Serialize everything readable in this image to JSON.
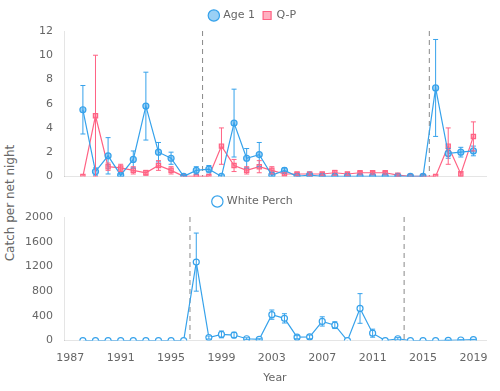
{
  "chart_data": [
    {
      "type": "line",
      "ylabel": "Catch per net night",
      "x": [
        1988,
        1989,
        1990,
        1991,
        1992,
        1993,
        1994,
        1995,
        1996,
        1997,
        1998,
        1999,
        2000,
        2001,
        2002,
        2003,
        2004,
        2005,
        2006,
        2007,
        2008,
        2009,
        2010,
        2011,
        2012,
        2013,
        2014,
        2015,
        2016,
        2017,
        2018,
        2019
      ],
      "series": [
        {
          "name": "Age 1",
          "marker": "circle",
          "values": [
            5.5,
            0.4,
            1.7,
            0.1,
            1.4,
            5.8,
            2.0,
            1.5,
            0.0,
            0.5,
            0.6,
            0.0,
            4.4,
            1.5,
            1.8,
            0.1,
            0.5,
            0.0,
            0.1,
            0.0,
            0.0,
            0.0,
            0.0,
            0.0,
            0.0,
            0.0,
            0.0,
            0.0,
            7.3,
            1.9,
            2.0,
            2.1
          ],
          "errors": [
            2.0,
            0.3,
            1.5,
            0.1,
            0.7,
            2.8,
            0.8,
            0.5,
            0.0,
            0.3,
            0.3,
            0.0,
            2.8,
            0.8,
            1.0,
            0.1,
            0.2,
            0.0,
            0.1,
            0.0,
            0.0,
            0.0,
            0.0,
            0.0,
            0.0,
            0.0,
            0.0,
            0.0,
            4.0,
            0.4,
            0.4,
            0.4
          ]
        },
        {
          "name": "Q-P",
          "marker": "square",
          "values": [
            0.0,
            5.0,
            0.8,
            0.7,
            0.5,
            0.3,
            0.9,
            0.5,
            0.0,
            0.0,
            0.0,
            2.5,
            0.9,
            0.5,
            0.8,
            0.5,
            0.2,
            0.2,
            0.2,
            0.2,
            0.3,
            0.2,
            0.3,
            0.3,
            0.3,
            0.1,
            0.0,
            0.0,
            0.0,
            2.5,
            0.2,
            3.3
          ],
          "errors": [
            0.0,
            5.0,
            0.3,
            0.3,
            0.3,
            0.2,
            0.4,
            0.3,
            0.0,
            0.0,
            0.0,
            1.5,
            0.5,
            0.3,
            0.5,
            0.3,
            0.1,
            0.1,
            0.1,
            0.1,
            0.2,
            0.1,
            0.1,
            0.1,
            0.1,
            0.1,
            0.0,
            0.0,
            0.0,
            1.5,
            0.2,
            1.2
          ]
        }
      ],
      "vlines": [
        1997.5,
        2015.5
      ],
      "xlim": [
        1986.5,
        2020
      ],
      "xticks": [
        1987,
        1991,
        1995,
        1999,
        2003,
        2007,
        2011,
        2015,
        2019
      ],
      "ylim": [
        0,
        12
      ],
      "yticks": [
        0,
        2,
        4,
        6,
        8,
        10,
        12
      ],
      "legend": "top",
      "grid": false,
      "tick_labels": "y"
    },
    {
      "type": "line",
      "xlabel": "Year",
      "x": [
        1988,
        1989,
        1990,
        1991,
        1992,
        1993,
        1994,
        1995,
        1996,
        1997,
        1998,
        1999,
        2000,
        2001,
        2002,
        2003,
        2004,
        2005,
        2006,
        2007,
        2008,
        2009,
        2010,
        2011,
        2012,
        2013,
        2014,
        2015,
        2016,
        2017,
        2018,
        2019
      ],
      "series": [
        {
          "name": "White Perch",
          "marker": "open_circle",
          "values": [
            0,
            0,
            0,
            0,
            0,
            0,
            0,
            0,
            0,
            1270,
            50,
            100,
            90,
            30,
            20,
            420,
            360,
            55,
            60,
            310,
            250,
            0,
            520,
            120,
            0,
            30,
            0,
            0,
            0,
            5,
            10,
            15
          ],
          "errors": [
            0,
            0,
            0,
            0,
            0,
            0,
            0,
            0,
            0,
            470,
            25,
            55,
            45,
            15,
            10,
            75,
            75,
            25,
            30,
            75,
            55,
            0,
            240,
            65,
            0,
            18,
            0,
            0,
            0,
            3,
            4,
            5
          ]
        }
      ],
      "vlines": [
        1996.5,
        2013.5
      ],
      "xlim": [
        1986.5,
        2020
      ],
      "xticks": [
        1987,
        1991,
        1995,
        1999,
        2003,
        2007,
        2011,
        2015,
        2019
      ],
      "ylim": [
        0,
        2000
      ],
      "yticks": [
        0,
        400,
        800,
        1200,
        1600,
        2000
      ],
      "legend": "top",
      "grid": false
    }
  ]
}
